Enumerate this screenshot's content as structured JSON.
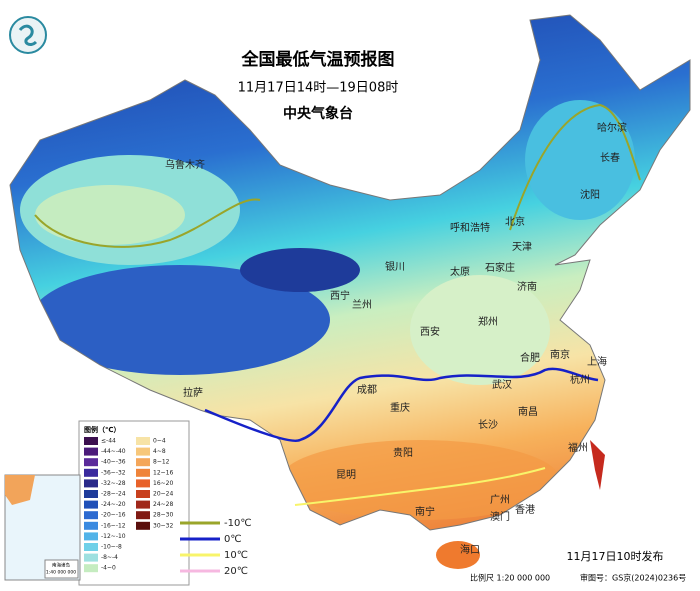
{
  "header": {
    "title": "全国最低气温预报图",
    "subtitle": "11月17日14时—19日08时",
    "issuer": "中央气象台"
  },
  "cities": [
    "乌鲁木齐",
    "哈尔滨",
    "长春",
    "沈阳",
    "北京",
    "天津",
    "呼和浩特",
    "银川",
    "太原",
    "石家庄",
    "济南",
    "西宁",
    "兰州",
    "郑州",
    "西安",
    "合肥",
    "南京",
    "上海",
    "杭州",
    "武汉",
    "成都",
    "重庆",
    "南昌",
    "长沙",
    "拉萨",
    "贵阳",
    "福州",
    "昆明",
    "南宁",
    "广州",
    "香港",
    "澳门",
    "海口"
  ],
  "legend": {
    "title": "图例（℃）",
    "cold": [
      "≤-44",
      "-44~-40",
      "-40~-36",
      "-36~-32",
      "-32~-28",
      "-28~-24",
      "-24~-20",
      "-20~-16",
      "-16~-12",
      "-12~-10",
      "-10~-8",
      "-8~-4",
      "-4~0"
    ],
    "warm": [
      "0~4",
      "4~8",
      "8~12",
      "12~16",
      "16~20",
      "20~24",
      "24~28",
      "28~30",
      "30~32"
    ],
    "contours": [
      "-10℃",
      "0℃",
      "10℃",
      "20℃"
    ]
  },
  "inset": {
    "title": "南海诸岛",
    "scale": "1:40 000 000"
  },
  "footer": {
    "released": "11月17日10时发布",
    "scale": "比例尺 1:20 000 000",
    "approval": "审图号：GS京(2024)0236号"
  }
}
